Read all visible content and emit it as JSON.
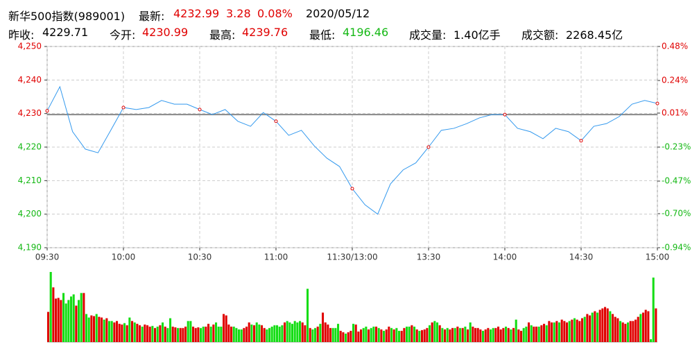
{
  "header": {
    "name": "新华500指数(989001)",
    "last_label": "最新:",
    "last": "4232.99",
    "change": "3.28",
    "change_pct": "0.08%",
    "date": "2020/05/12",
    "prev_close_label": "昨收:",
    "prev_close": "4229.71",
    "open_label": "今开:",
    "open": "4230.99",
    "high_label": "最高:",
    "high": "4239.76",
    "low_label": "最低:",
    "low": "4196.46",
    "volume_label": "成交量:",
    "volume": "1.40亿手",
    "turnover_label": "成交额:",
    "turnover": "2268.45亿"
  },
  "chart_data": [
    {
      "type": "line",
      "color": "#3399ee",
      "up_color": "#e00000",
      "down_color": "#14b814",
      "grid": true,
      "x": [
        0,
        5,
        10,
        15,
        20,
        25,
        30,
        35,
        40,
        45,
        50,
        55,
        60,
        65,
        70,
        75,
        80,
        85,
        90,
        95,
        100,
        105,
        110,
        115,
        120,
        125,
        130,
        135,
        140,
        145,
        150,
        155,
        160,
        165,
        170,
        175,
        180,
        185,
        190,
        195,
        200,
        205,
        210,
        215,
        220,
        225,
        230,
        235,
        240
      ],
      "values": [
        4230.8,
        4238,
        4224.6,
        4219.4,
        4218.3,
        4225,
        4231.8,
        4231.2,
        4231.8,
        4233.9,
        4232.8,
        4232.8,
        4231.2,
        4229.7,
        4231.2,
        4227.7,
        4226.2,
        4230.3,
        4227.7,
        4223.5,
        4225,
        4220.4,
        4216.7,
        4214.2,
        4207.6,
        4202.8,
        4200,
        4209,
        4213.2,
        4215.3,
        4220,
        4225,
        4225.6,
        4227,
        4228.7,
        4229.7,
        4229.7,
        4225.6,
        4224.6,
        4222.5,
        4225.6,
        4224.6,
        4221.9,
        4226.2,
        4227,
        4229.1,
        4232.8,
        4233.9,
        4233
      ],
      "xlim": [
        0,
        240
      ],
      "xticks": [
        {
          "value": 0,
          "label": "09:30"
        },
        {
          "value": 30,
          "label": "10:00"
        },
        {
          "value": 60,
          "label": "10:30"
        },
        {
          "value": 90,
          "label": "11:00"
        },
        {
          "value": 120,
          "label": "11:30/13:00"
        },
        {
          "value": 150,
          "label": "13:30"
        },
        {
          "value": 180,
          "label": "14:00"
        },
        {
          "value": 210,
          "label": "14:30"
        },
        {
          "value": 240,
          "label": "15:00"
        }
      ],
      "ylim": [
        4190,
        4250
      ],
      "yticks": [
        {
          "value": 4250,
          "label": "4,250"
        },
        {
          "value": 4240,
          "label": "4,240"
        },
        {
          "value": 4230,
          "label": "4,230"
        },
        {
          "value": 4220,
          "label": "4,220"
        },
        {
          "value": 4210,
          "label": "4,210"
        },
        {
          "value": 4200,
          "label": "4,200"
        },
        {
          "value": 4190,
          "label": "4,190"
        }
      ],
      "y2lim": [
        -0.94,
        0.48
      ],
      "y2ticks": [
        {
          "value": 0.48,
          "label": "0.48%"
        },
        {
          "value": 0.24,
          "label": "0.24%"
        },
        {
          "value": 0.01,
          "label": "0.01%"
        },
        {
          "value": -0.23,
          "label": "-0.23%"
        },
        {
          "value": -0.47,
          "label": "-0.47%"
        },
        {
          "value": -0.7,
          "label": "-0.70%"
        },
        {
          "value": -0.94,
          "label": "-0.94%"
        }
      ]
    },
    {
      "type": "bar",
      "up_color": "#e00000",
      "down_color": "#14dd14",
      "values": [
        43,
        100,
        78,
        62,
        63,
        60,
        70,
        55,
        60,
        65,
        68,
        52,
        60,
        70,
        70,
        40,
        35,
        38,
        37,
        40,
        36,
        35,
        32,
        34,
        30,
        30,
        28,
        30,
        26,
        25,
        27,
        24,
        35,
        30,
        28,
        26,
        24,
        22,
        25,
        24,
        22,
        23,
        20,
        22,
        24,
        28,
        22,
        20,
        34,
        22,
        21,
        20,
        20,
        20,
        22,
        30,
        30,
        22,
        20,
        21,
        20,
        22,
        22,
        26,
        22,
        25,
        28,
        22,
        22,
        40,
        38,
        25,
        22,
        22,
        20,
        18,
        18,
        20,
        22,
        28,
        25,
        24,
        28,
        25,
        24,
        20,
        18,
        20,
        22,
        24,
        24,
        22,
        24,
        28,
        30,
        28,
        26,
        30,
        28,
        30,
        28,
        24,
        76,
        20,
        18,
        20,
        22,
        26,
        42,
        28,
        25,
        20,
        20,
        20,
        26,
        16,
        14,
        12,
        14,
        16,
        26,
        25,
        15,
        18,
        20,
        22,
        18,
        20,
        22,
        22,
        20,
        18,
        16,
        18,
        22,
        20,
        18,
        20,
        16,
        16,
        20,
        22,
        22,
        24,
        22,
        18,
        16,
        17,
        18,
        20,
        24,
        28,
        30,
        28,
        24,
        20,
        18,
        20,
        18,
        20,
        20,
        22,
        20,
        20,
        22,
        18,
        28,
        22,
        20,
        20,
        18,
        16,
        18,
        20,
        18,
        20,
        20,
        22,
        18,
        20,
        22,
        20,
        18,
        20,
        32,
        18,
        16,
        20,
        22,
        28,
        24,
        22,
        22,
        22,
        24,
        26,
        24,
        30,
        28,
        28,
        30,
        28,
        32,
        30,
        28,
        30,
        32,
        34,
        32,
        30,
        34,
        36,
        40,
        38,
        42,
        44,
        42,
        46,
        48,
        50,
        48,
        44,
        40,
        36,
        34,
        30,
        28,
        26,
        28,
        30,
        30,
        32,
        36,
        40,
        42,
        46,
        44,
        4,
        92,
        48
      ],
      "up": [
        1,
        0,
        1,
        1,
        1,
        1,
        0,
        0,
        0,
        0,
        0,
        1,
        0,
        0,
        1,
        0,
        0,
        1,
        1,
        0,
        1,
        1,
        0,
        1,
        0,
        0,
        1,
        1,
        1,
        1,
        0,
        1,
        0,
        1,
        0,
        1,
        1,
        0,
        1,
        1,
        1,
        0,
        1,
        0,
        1,
        0,
        1,
        0,
        0,
        1,
        1,
        0,
        1,
        1,
        1,
        0,
        0,
        1,
        1,
        1,
        0,
        0,
        1,
        1,
        0,
        1,
        0,
        0,
        0,
        1,
        1,
        1,
        1,
        0,
        0,
        0,
        0,
        1,
        1,
        1,
        0,
        1,
        0,
        0,
        1,
        1,
        0,
        0,
        0,
        0,
        0,
        0,
        0,
        1,
        0,
        0,
        0,
        0,
        0,
        0,
        1,
        1,
        0,
        1,
        0,
        0,
        1,
        0,
        1,
        1,
        1,
        1,
        0,
        0,
        0,
        1,
        1,
        0,
        1,
        1,
        0,
        1,
        1,
        1,
        0,
        0,
        1,
        0,
        0,
        1,
        0,
        1,
        0,
        1,
        1,
        0,
        1,
        0,
        0,
        1,
        1,
        0,
        0,
        1,
        0,
        1,
        0,
        1,
        1,
        1,
        0,
        1,
        0,
        0,
        1,
        0,
        1,
        0,
        1,
        1,
        0,
        1,
        0,
        1,
        0,
        1,
        0,
        1,
        1,
        1,
        1,
        0,
        1,
        1,
        0,
        0,
        1,
        1,
        1,
        1,
        0,
        1,
        0,
        1,
        0,
        1,
        1,
        0,
        0,
        1,
        0,
        1,
        1,
        0,
        1,
        1,
        0,
        1,
        1,
        0,
        1,
        0,
        1,
        1,
        1,
        0,
        1,
        0,
        1,
        1,
        1,
        0,
        1,
        1,
        0,
        1,
        0,
        1,
        1,
        1,
        1,
        0,
        1,
        1,
        1,
        0,
        1,
        1,
        0,
        1,
        1,
        1,
        1,
        0,
        1,
        1,
        1,
        0,
        0,
        1
      ]
    }
  ]
}
